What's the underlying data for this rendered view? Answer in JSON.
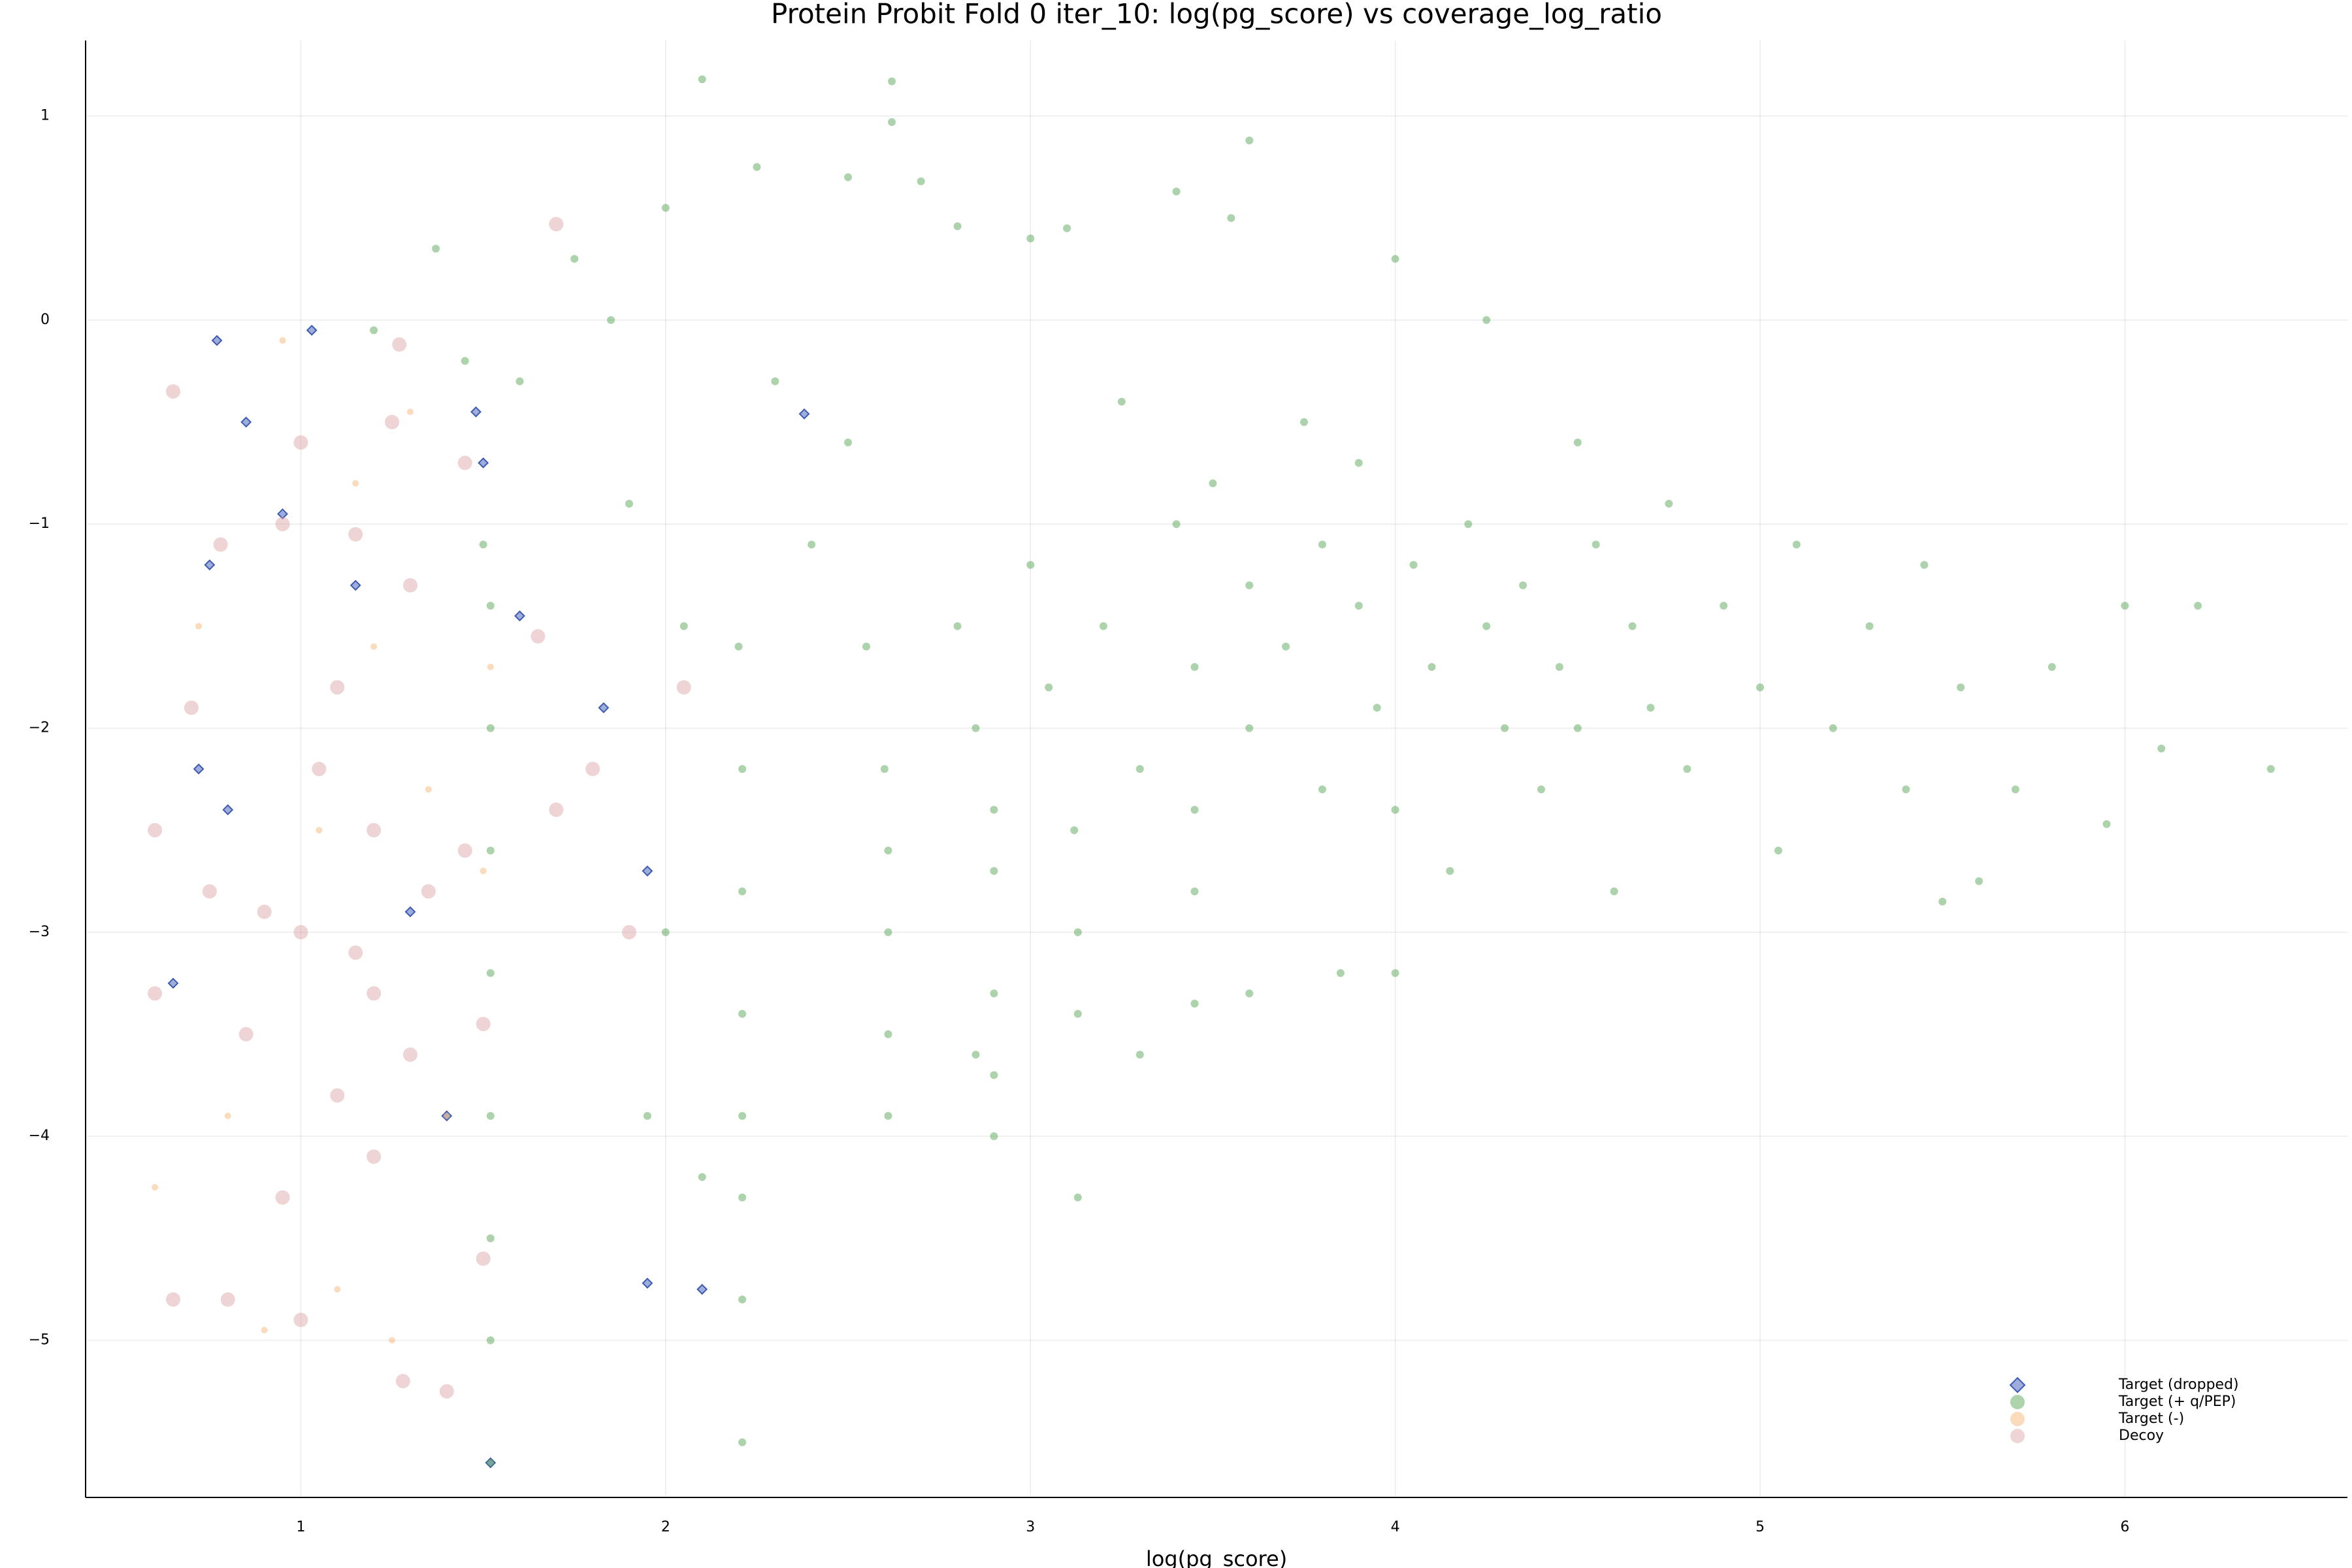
{
  "chart_data": {
    "type": "scatter",
    "title": "Protein Probit Fold 0 iter_10: log(pg_score) vs coverage_log_ratio",
    "x_label": "log(pg_score)",
    "xlim": [
      0.41,
      6.61
    ],
    "ylim": [
      -5.77,
      1.37
    ],
    "xticks": [
      1,
      2,
      3,
      4,
      5,
      6
    ],
    "yticks": [
      {
        "value": -5,
        "label": "−5"
      },
      {
        "value": -4,
        "label": "−4"
      },
      {
        "value": -3,
        "label": "−3"
      },
      {
        "value": -2,
        "label": "−2"
      },
      {
        "value": -1,
        "label": "−1"
      },
      0,
      1
    ],
    "grid": true,
    "legend": "bottom right",
    "series": [
      {
        "name": "Target (dropped)",
        "color": "#3d5bb5",
        "marker": "diamond",
        "x": [
          0.77,
          0.75,
          0.72,
          1.03,
          0.85,
          0.95,
          1.15,
          0.8,
          0.65,
          1.3,
          1.48,
          1.5,
          1.6,
          1.95,
          2.1,
          1.95,
          1.4,
          2.38,
          1.52,
          1.83
        ],
        "values": [
          -0.1,
          -1.2,
          -2.2,
          -0.05,
          -0.5,
          -0.95,
          -1.3,
          -2.4,
          -3.25,
          -2.9,
          -0.45,
          -0.7,
          -1.45,
          -4.72,
          -4.75,
          -2.7,
          -3.9,
          -0.46,
          -5.6,
          -1.9
        ]
      },
      {
        "name": "Target (+ q/PEP)",
        "color": "#4a9e4a",
        "marker": "circle",
        "x": [
          1.52,
          1.52,
          1.52,
          1.52,
          1.52,
          1.52,
          1.52,
          1.52,
          1.5,
          1.45,
          1.2,
          1.37,
          1.6,
          1.75,
          1.85,
          1.9,
          2.0,
          2.1,
          2.05,
          2.2,
          2.21,
          2.21,
          2.21,
          2.21,
          2.21,
          2.21,
          2.21,
          2.1,
          2.0,
          1.95,
          2.25,
          2.3,
          2.4,
          2.5,
          2.5,
          2.55,
          2.6,
          2.61,
          2.61,
          2.61,
          2.61,
          2.62,
          2.62,
          2.7,
          2.8,
          2.85,
          2.9,
          2.9,
          2.9,
          2.9,
          2.9,
          2.85,
          2.8,
          3.0,
          3.0,
          3.05,
          3.1,
          3.12,
          3.13,
          3.13,
          3.13,
          3.2,
          3.25,
          3.3,
          3.3,
          3.4,
          3.4,
          3.45,
          3.45,
          3.45,
          3.45,
          3.5,
          3.55,
          3.6,
          3.6,
          3.6,
          3.6,
          3.7,
          3.75,
          3.8,
          3.8,
          3.85,
          3.9,
          3.9,
          3.95,
          4.0,
          4.0,
          4.0,
          4.05,
          4.1,
          4.15,
          4.2,
          4.25,
          4.25,
          4.3,
          4.35,
          4.4,
          4.45,
          4.5,
          4.5,
          4.55,
          4.6,
          4.65,
          4.7,
          4.75,
          4.8,
          4.9,
          5.0,
          5.05,
          5.1,
          5.2,
          5.3,
          5.4,
          5.45,
          5.5,
          5.55,
          5.6,
          5.7,
          5.8,
          5.95,
          6.0,
          6.1,
          6.2,
          6.4
        ],
        "values": [
          -5.6,
          -5.0,
          -4.5,
          -3.9,
          -3.2,
          -2.6,
          -2.0,
          -1.4,
          -1.1,
          -0.2,
          -0.05,
          0.35,
          -0.3,
          0.3,
          0.0,
          -0.9,
          0.55,
          1.18,
          -1.5,
          -1.6,
          -2.2,
          -2.8,
          -3.4,
          -3.9,
          -4.3,
          -4.8,
          -5.5,
          -4.2,
          -3.0,
          -3.9,
          0.75,
          -0.3,
          -1.1,
          0.7,
          -0.6,
          -1.6,
          -2.2,
          -2.6,
          -3.0,
          -3.5,
          -3.9,
          1.17,
          0.97,
          0.68,
          -1.5,
          -2.0,
          -2.4,
          -2.7,
          -3.3,
          -3.7,
          -4.0,
          -3.6,
          0.46,
          0.4,
          -1.2,
          -1.8,
          0.45,
          -2.5,
          -3.0,
          -3.4,
          -4.3,
          -1.5,
          -0.4,
          -2.2,
          -3.6,
          0.63,
          -1.0,
          -1.7,
          -2.4,
          -2.8,
          -3.35,
          -0.8,
          0.5,
          0.88,
          -1.3,
          -2.0,
          -3.3,
          -1.6,
          -0.5,
          -1.1,
          -2.3,
          -3.2,
          -0.7,
          -1.4,
          -1.9,
          0.3,
          -2.4,
          -3.2,
          -1.2,
          -1.7,
          -2.7,
          -1.0,
          0.0,
          -1.5,
          -2.0,
          -1.3,
          -2.3,
          -1.7,
          -0.6,
          -2.0,
          -1.1,
          -2.8,
          -1.5,
          -1.9,
          -0.9,
          -2.2,
          -1.4,
          -1.8,
          -2.6,
          -1.1,
          -2.0,
          -1.5,
          -2.3,
          -1.2,
          -2.85,
          -1.8,
          -2.75,
          -2.3,
          -1.7,
          -2.47,
          -1.4,
          -2.1,
          -1.4,
          -2.2
        ]
      },
      {
        "name": "Target (-)",
        "color": "#f5b26b",
        "marker": "circle",
        "x": [
          0.6,
          0.72,
          0.9,
          0.95,
          1.05,
          1.1,
          1.2,
          1.3,
          1.35,
          1.4,
          1.5,
          1.52,
          1.25,
          0.8,
          1.15
        ],
        "values": [
          -4.25,
          -1.5,
          -4.95,
          -0.1,
          -2.5,
          -4.75,
          -1.6,
          -0.45,
          -2.3,
          -3.9,
          -2.7,
          -1.7,
          -5.0,
          -3.9,
          -0.8
        ]
      },
      {
        "name": "Decoy",
        "color": "#d9a0a0",
        "marker": "circle",
        "x": [
          0.6,
          0.6,
          0.65,
          0.65,
          0.7,
          0.75,
          0.78,
          0.8,
          0.85,
          0.9,
          0.95,
          1.0,
          1.0,
          1.0,
          1.05,
          1.1,
          1.15,
          1.15,
          1.2,
          1.2,
          1.25,
          1.27,
          1.28,
          1.3,
          1.3,
          1.35,
          1.4,
          1.45,
          1.5,
          1.45,
          1.7,
          1.7,
          1.8,
          1.9,
          2.05,
          1.65,
          1.5,
          0.95,
          1.1,
          1.2
        ],
        "values": [
          -2.5,
          -3.3,
          -4.8,
          -0.35,
          -1.9,
          -2.8,
          -1.1,
          -4.8,
          -3.5,
          -2.9,
          -1.0,
          -0.6,
          -3.0,
          -4.9,
          -2.2,
          -1.8,
          -1.05,
          -3.1,
          -2.5,
          -4.1,
          -0.5,
          -0.12,
          -5.2,
          -1.3,
          -3.6,
          -2.8,
          -5.25,
          -2.6,
          -3.45,
          -0.7,
          0.47,
          -2.4,
          -2.2,
          -3.0,
          -1.8,
          -1.55,
          -4.6,
          -4.3,
          -3.8,
          -3.3
        ]
      }
    ]
  }
}
